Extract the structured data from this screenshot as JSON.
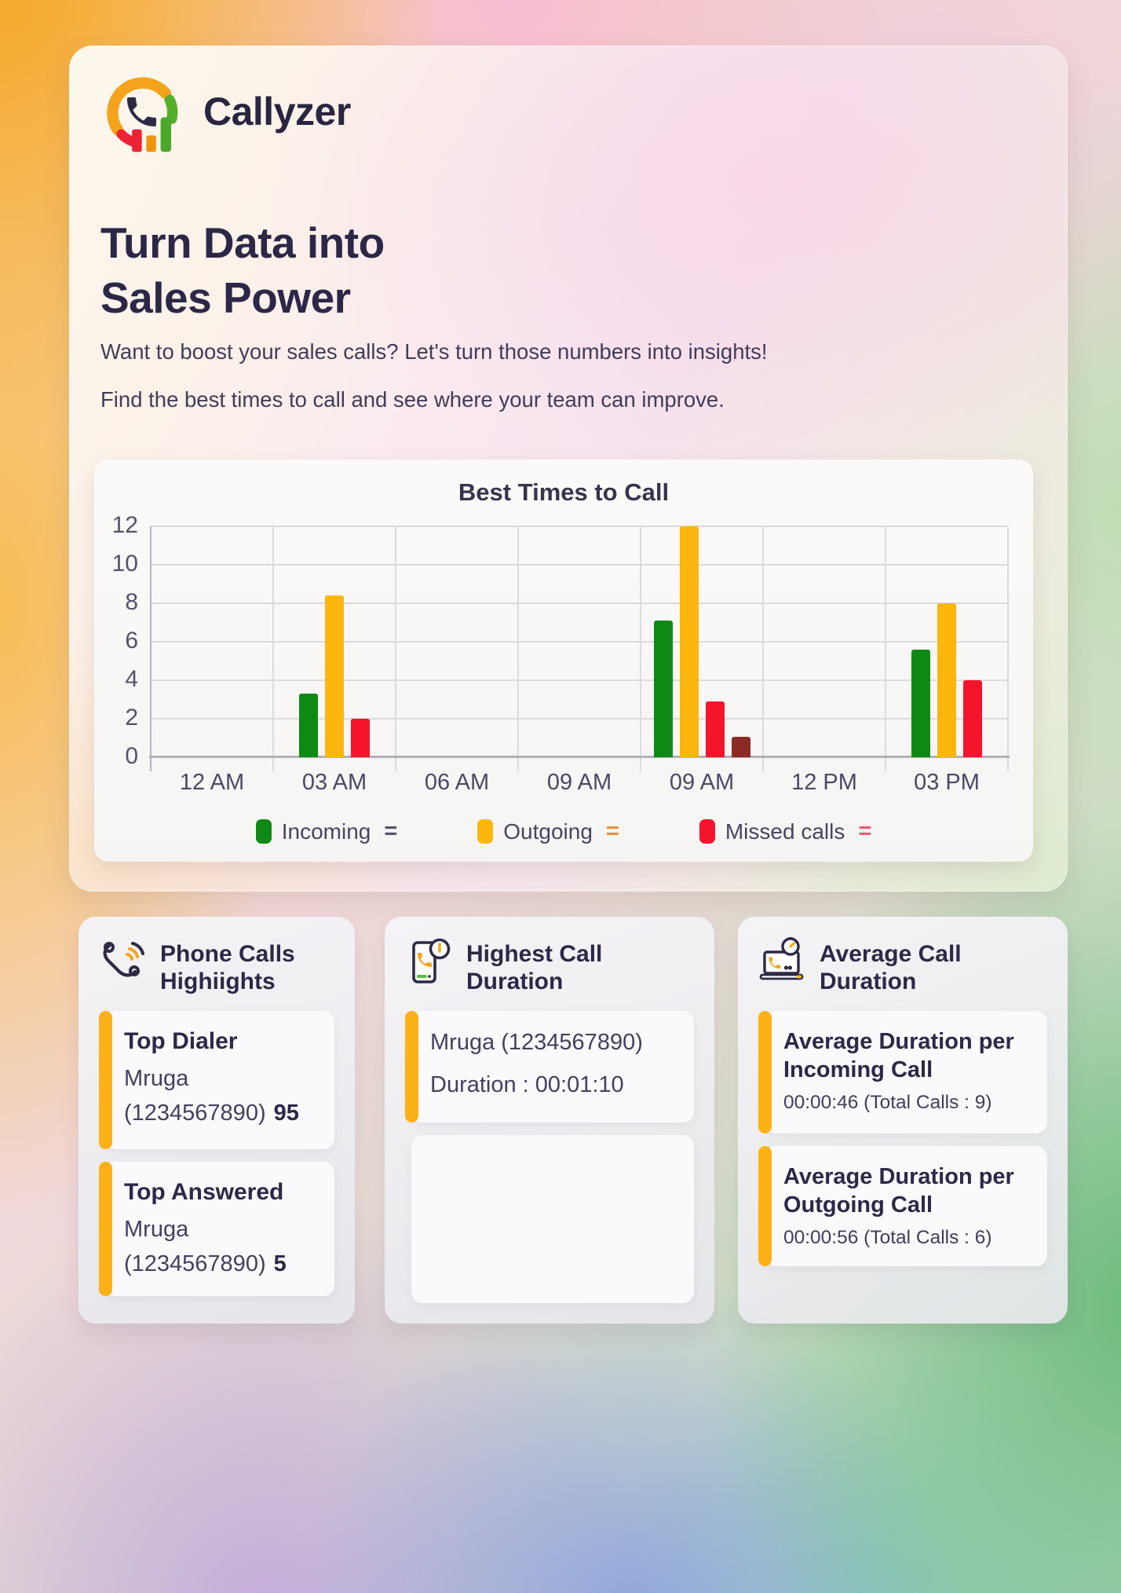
{
  "brand": {
    "name": "Callyzer"
  },
  "hero": {
    "title_line1": "Turn Data into",
    "title_line2": "Sales Power",
    "subtitle_line1": "Want to boost your sales calls? Let's turn those numbers into insights!",
    "subtitle_line2": "Find the best times to call and see where your team can improve."
  },
  "chart_data": {
    "type": "bar",
    "title": "Best Times to Call",
    "categories": [
      "12 AM",
      "03 AM",
      "06 AM",
      "09 AM",
      "09 AM",
      "12 PM",
      "03 PM"
    ],
    "series": [
      {
        "name": "Incoming",
        "color": "#0e8a14",
        "values": [
          0,
          3.3,
          0,
          0,
          7.1,
          0,
          5.6
        ]
      },
      {
        "name": "Outgoing",
        "color": "#fcb60d",
        "values": [
          0,
          8.4,
          0,
          0,
          12,
          0,
          8
        ]
      },
      {
        "name": "Missed calls",
        "color": "#f4142c",
        "values": [
          0,
          2,
          0,
          0,
          2.9,
          0,
          4
        ]
      },
      {
        "name": "",
        "color": "#8e2a26",
        "values": [
          0,
          0,
          0,
          0,
          1.05,
          0,
          0
        ]
      }
    ],
    "ylim": [
      0,
      12
    ],
    "yticks": [
      0,
      2,
      4,
      6,
      8,
      10,
      12
    ],
    "grid": true,
    "legend_position": "bottom",
    "legend": [
      {
        "label": "Incoming",
        "swatch": "#0e8a14",
        "suffix": "=",
        "suffix_color": "#56516c"
      },
      {
        "label": "Outgoing",
        "swatch": "#fcb60d",
        "suffix": "=",
        "suffix_color": "#ee8d3d"
      },
      {
        "label": "Missed calls",
        "swatch": "#f4142c",
        "suffix": "=",
        "suffix_color": "#f25a70"
      }
    ]
  },
  "cards": [
    {
      "title": "Phone Calls Highiights",
      "icon": "phone-waves-icon",
      "items": [
        {
          "title": "Top Dialer",
          "name": "Mruga",
          "phone": "(1234567890)",
          "count": "95"
        },
        {
          "title": "Top Answered",
          "name": "Mruga",
          "phone": "(1234567890)",
          "count": "5"
        }
      ]
    },
    {
      "title": "Highest Call Duration",
      "icon": "phone-clock-icon",
      "items": [
        {
          "line1": "Mruga (1234567890)",
          "line2": "Duration : 00:01:10"
        }
      ]
    },
    {
      "title": "Average Call Duration",
      "icon": "laptop-timer-icon",
      "items": [
        {
          "title": "Average Duration per Incoming Call",
          "value": "00:00:46 (Total Calls : 9)"
        },
        {
          "title": "Average Duration per Outgoing Call",
          "value": "00:00:56 (Total Calls : 6)"
        }
      ]
    }
  ]
}
